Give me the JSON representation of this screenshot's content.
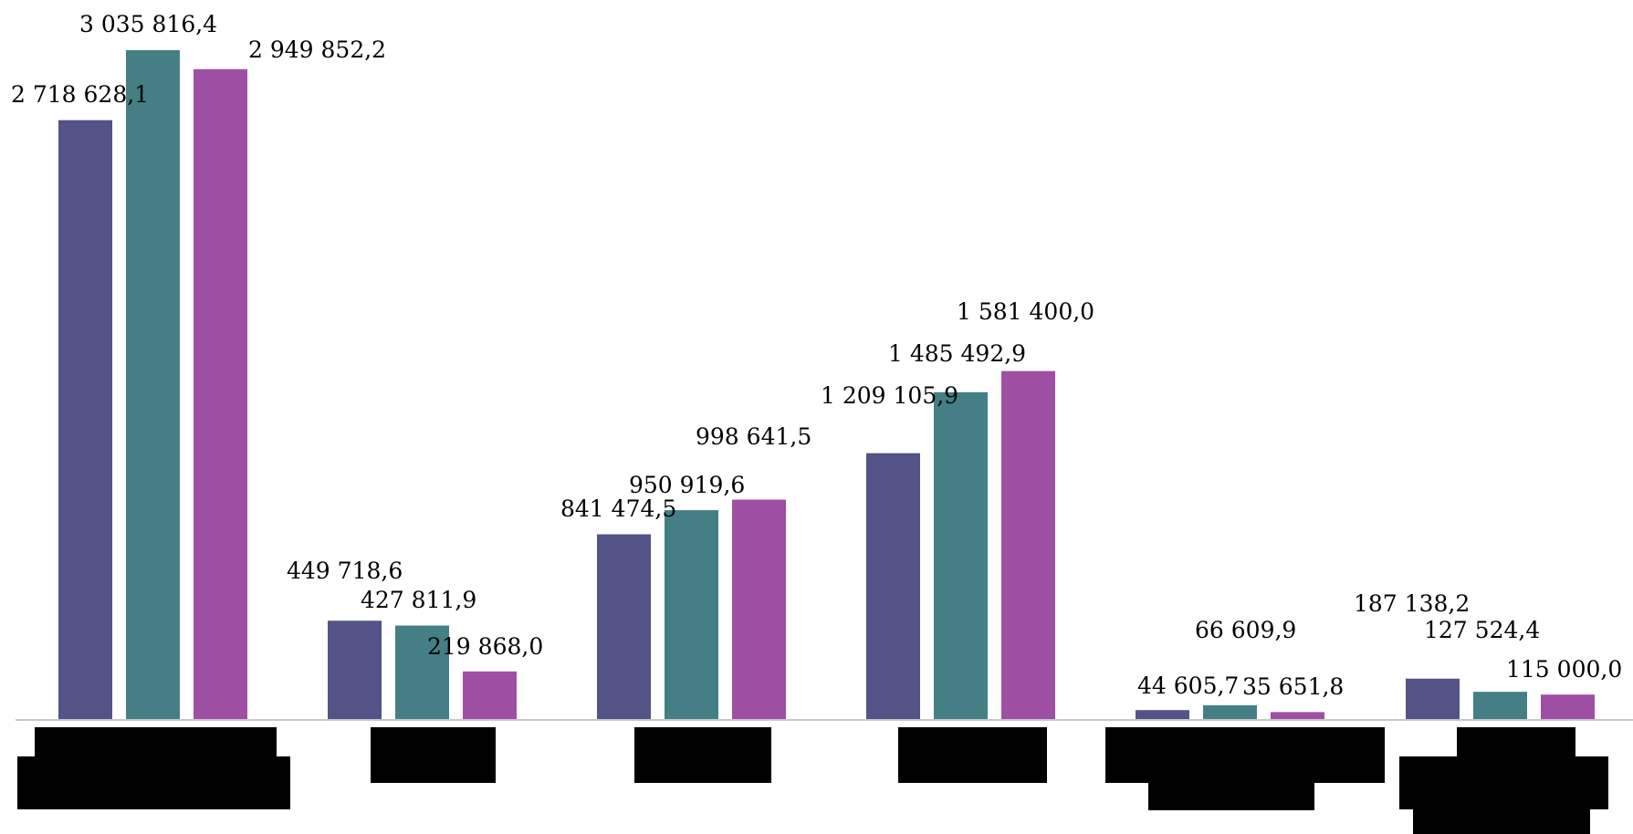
{
  "chart_data": {
    "type": "bar",
    "categories": [
      "",
      "",
      "",
      "",
      "",
      ""
    ],
    "series": [
      {
        "values": [
          2718628.1,
          449718.6,
          841474.5,
          1209105.9,
          44605.7,
          187138.2
        ],
        "labels": [
          "2 718 628,1",
          "449 718,6",
          "841 474,5",
          "1 209 105,9",
          "44 605,7",
          "187 138,2"
        ],
        "color": "#535388"
      },
      {
        "values": [
          3035816.4,
          427811.9,
          950919.6,
          1485492.9,
          66609.9,
          127524.4
        ],
        "labels": [
          "3 035 816,4",
          "427 811,9",
          "950 919,6",
          "1 485 492,9",
          "66 609,9",
          "127 524,4"
        ],
        "color": "#437F84"
      },
      {
        "values": [
          2949852.2,
          219868.0,
          998641.5,
          1581400.0,
          35651.8,
          115000.0
        ],
        "labels": [
          "2 949 852,2",
          "219 868,0",
          "998 641,5",
          "1 581 400,0",
          "35 651,8",
          "115 000,0"
        ],
        "color": "#9F4FA3"
      }
    ],
    "ylim": [
      0,
      3035816.4
    ],
    "grid": false,
    "legend": "none",
    "axis_color": "#C8C8C8",
    "redaction_color": "#000000"
  }
}
